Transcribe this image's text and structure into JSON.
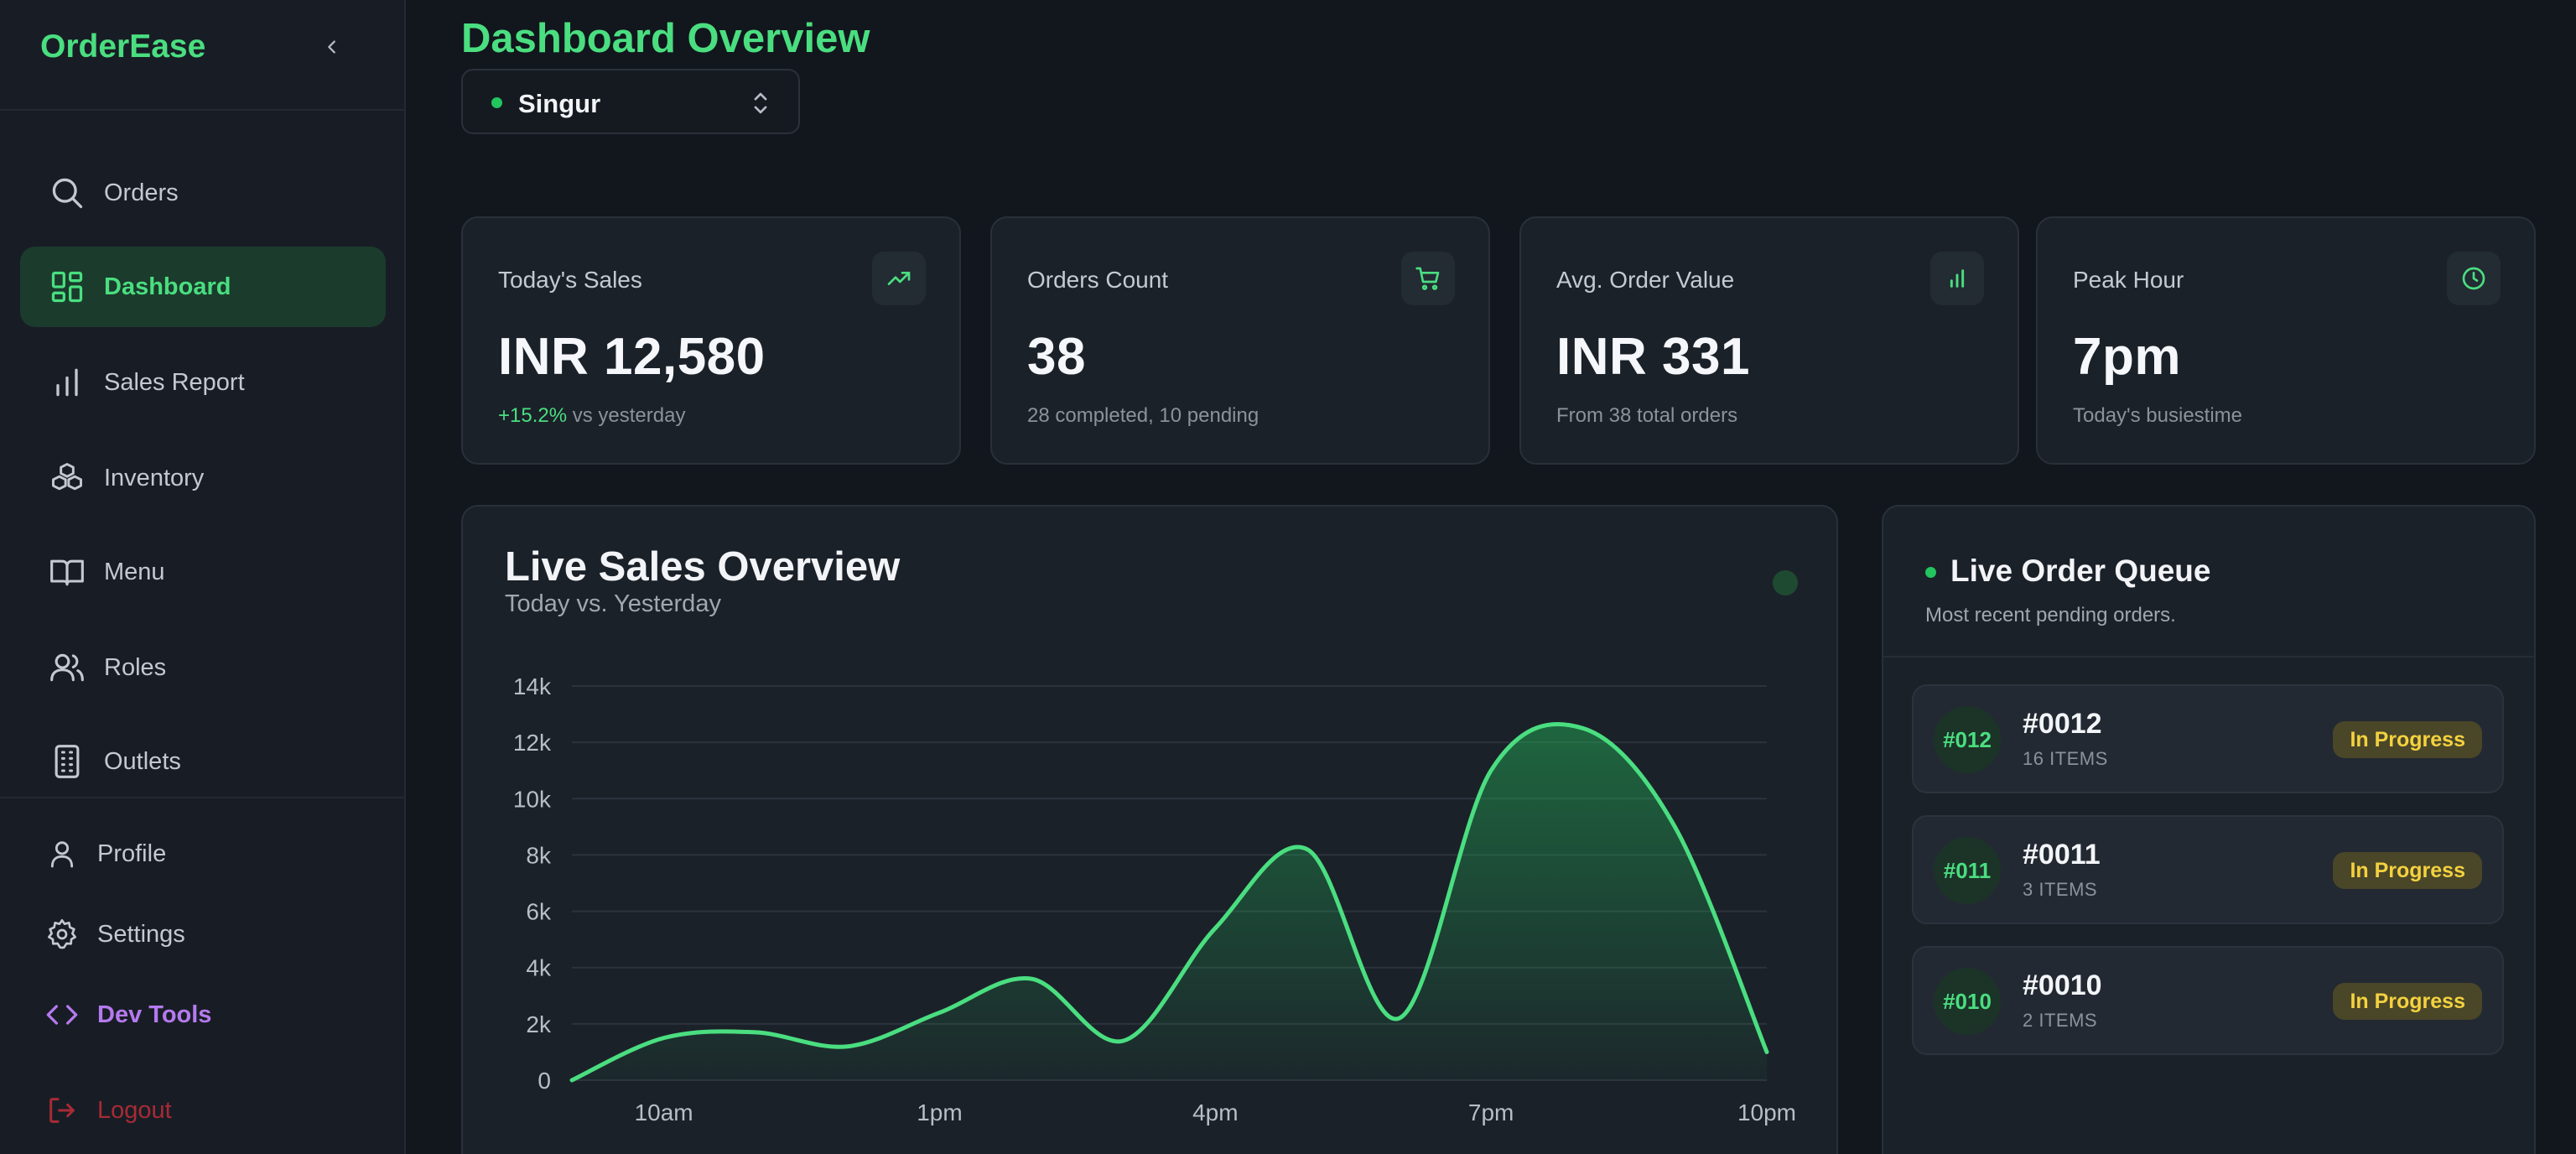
{
  "app": {
    "brand": "OrderEase",
    "accent": "#4ade80"
  },
  "sidebar": {
    "items": [
      {
        "label": "Orders",
        "icon": "search-icon"
      },
      {
        "label": "Dashboard",
        "icon": "grid-icon",
        "active": true
      },
      {
        "label": "Sales Report",
        "icon": "bar-chart-icon"
      },
      {
        "label": "Inventory",
        "icon": "boxes-icon"
      },
      {
        "label": "Menu",
        "icon": "book-icon"
      },
      {
        "label": "Roles",
        "icon": "users-icon"
      },
      {
        "label": "Outlets",
        "icon": "building-icon"
      }
    ],
    "footer": [
      {
        "label": "Profile",
        "icon": "user-icon"
      },
      {
        "label": "Settings",
        "icon": "gear-icon"
      },
      {
        "label": "Dev Tools",
        "icon": "code-icon"
      },
      {
        "label": "Logout",
        "icon": "logout-icon"
      }
    ]
  },
  "header": {
    "title": "Dashboard Overview",
    "outlet": "Singur"
  },
  "stats": [
    {
      "title": "Today's Sales",
      "value": "INR 12,580",
      "delta": "+15.2%",
      "sub": " vs yesterday",
      "icon": "trending-up-icon"
    },
    {
      "title": "Orders Count",
      "value": "38",
      "sub": "28 completed, 10 pending",
      "icon": "cart-icon"
    },
    {
      "title": "Avg. Order Value",
      "value": "INR 331",
      "sub": "From 38 total orders",
      "icon": "bar-chart-icon"
    },
    {
      "title": "Peak Hour",
      "value": "7pm",
      "sub": "Today's busiestime",
      "icon": "clock-icon"
    }
  ],
  "chart": {
    "title": "Live Sales Overview",
    "subtitle": "Today vs. Yesterday"
  },
  "chart_data": {
    "type": "area",
    "title": "Live Sales Overview",
    "subtitle": "Today vs. Yesterday",
    "xlabel": "",
    "ylabel": "",
    "x": [
      9,
      10,
      11,
      12,
      13,
      14,
      15,
      16,
      17,
      18,
      19,
      20,
      21,
      22
    ],
    "x_ticks": [
      10,
      13,
      16,
      19,
      22
    ],
    "xticklabels": [
      "10am",
      "1pm",
      "4pm",
      "7pm",
      "10pm"
    ],
    "yticks": [
      0,
      2000,
      4000,
      6000,
      8000,
      10000,
      12000,
      14000
    ],
    "yticklabels": [
      "0",
      "2k",
      "4k",
      "6k",
      "8k",
      "10k",
      "12k",
      "14k"
    ],
    "ylim": [
      0,
      14000
    ],
    "xlim": [
      9,
      22
    ],
    "series": [
      {
        "values": [
          0,
          1500,
          1700,
          1200,
          2400,
          3600,
          1400,
          5400,
          8200,
          2200,
          11000,
          12500,
          9000,
          1000
        ]
      }
    ],
    "grid": true,
    "color": "#4ade80"
  },
  "queue": {
    "title": "Live Order Queue",
    "subtitle": "Most recent pending orders.",
    "orders": [
      {
        "short": "#012",
        "number": "#0012",
        "items": "16 ITEMS",
        "status": "In Progress"
      },
      {
        "short": "#011",
        "number": "#0011",
        "items": "3 ITEMS",
        "status": "In Progress"
      },
      {
        "short": "#010",
        "number": "#0010",
        "items": "2 ITEMS",
        "status": "In Progress"
      }
    ]
  }
}
